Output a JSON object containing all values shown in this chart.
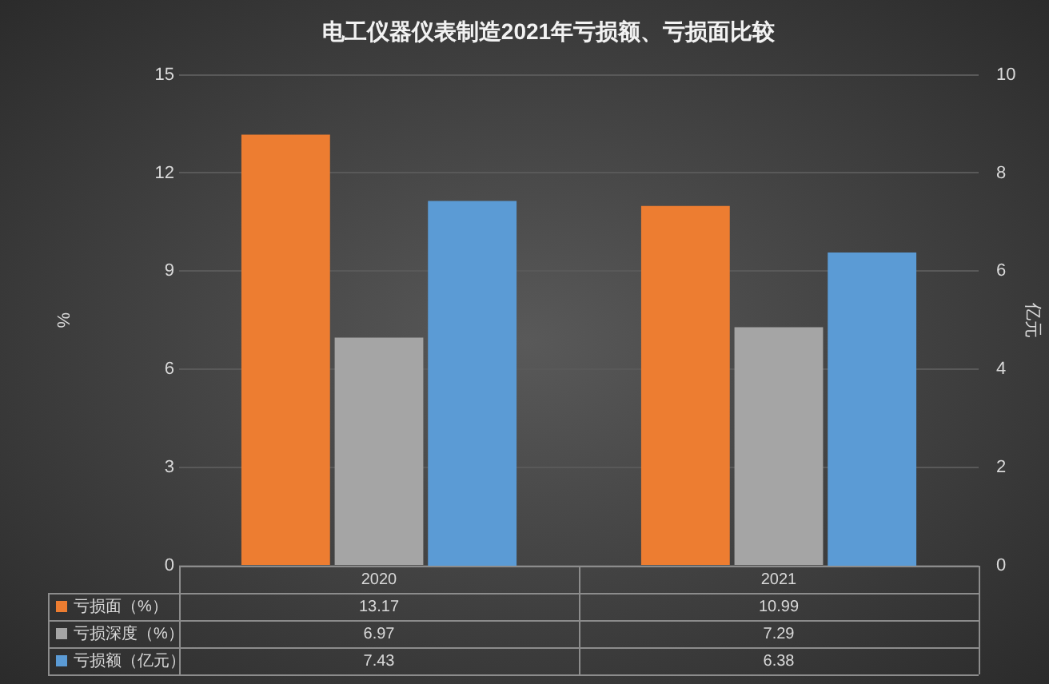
{
  "chart_data": {
    "type": "bar",
    "title": "电工仪器仪表制造2021年亏损额、亏损面比较",
    "categories": [
      "2020",
      "2021"
    ],
    "series": [
      {
        "name": "亏损面（%）",
        "color": "#ed7d31",
        "values": [
          13.17,
          10.99
        ]
      },
      {
        "name": "亏损深度（%）",
        "color": "#a5a5a5",
        "values": [
          6.97,
          7.29
        ]
      },
      {
        "name": "亏损额（亿元）",
        "color": "#5b9bd5",
        "values": [
          7.43,
          6.38
        ],
        "axis": "y2"
      }
    ],
    "ylabel": "%",
    "y2label": "亿元",
    "ylim": [
      0,
      15
    ],
    "yticks": [
      0,
      3,
      6,
      9,
      12,
      15
    ],
    "y2lim": [
      0,
      10
    ],
    "y2ticks": [
      0,
      2,
      4,
      6,
      8,
      10
    ],
    "grid": "y",
    "legend": "bottom",
    "data_labels": true
  }
}
